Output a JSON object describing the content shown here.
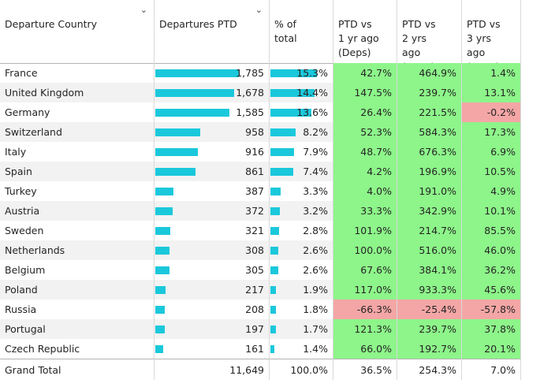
{
  "headers": {
    "country": "Departure Country",
    "departures": "Departures PTD",
    "pct": "% of\ntotal",
    "vs1": "PTD vs\n1 yr ago\n(Deps)",
    "vs2": "PTD vs\n2 yrs\nago\n(Deps)",
    "vs3": "PTD vs\n3 yrs\nago\n(Deps)"
  },
  "colors": {
    "positive": "#8df58a",
    "negative": "#f4a6a6",
    "bar": "#1ac8db"
  },
  "rows": [
    {
      "country": "France",
      "departures": "1,785",
      "dep_value": 1785,
      "pct": "15.3%",
      "pct_value": 15.3,
      "vs1": "42.7%",
      "vs2": "464.9%",
      "vs3": "1.4%",
      "vs1_neg": false,
      "vs2_neg": false,
      "vs3_neg": false
    },
    {
      "country": "United Kingdom",
      "departures": "1,678",
      "dep_value": 1678,
      "pct": "14.4%",
      "pct_value": 14.4,
      "vs1": "147.5%",
      "vs2": "239.7%",
      "vs3": "13.1%",
      "vs1_neg": false,
      "vs2_neg": false,
      "vs3_neg": false
    },
    {
      "country": "Germany",
      "departures": "1,585",
      "dep_value": 1585,
      "pct": "13.6%",
      "pct_value": 13.6,
      "vs1": "26.4%",
      "vs2": "221.5%",
      "vs3": "-0.2%",
      "vs1_neg": false,
      "vs2_neg": false,
      "vs3_neg": true
    },
    {
      "country": "Switzerland",
      "departures": "958",
      "dep_value": 958,
      "pct": "8.2%",
      "pct_value": 8.2,
      "vs1": "52.3%",
      "vs2": "584.3%",
      "vs3": "17.3%",
      "vs1_neg": false,
      "vs2_neg": false,
      "vs3_neg": false
    },
    {
      "country": "Italy",
      "departures": "916",
      "dep_value": 916,
      "pct": "7.9%",
      "pct_value": 7.9,
      "vs1": "48.7%",
      "vs2": "676.3%",
      "vs3": "6.9%",
      "vs1_neg": false,
      "vs2_neg": false,
      "vs3_neg": false
    },
    {
      "country": "Spain",
      "departures": "861",
      "dep_value": 861,
      "pct": "7.4%",
      "pct_value": 7.4,
      "vs1": "4.2%",
      "vs2": "196.9%",
      "vs3": "10.5%",
      "vs1_neg": false,
      "vs2_neg": false,
      "vs3_neg": false
    },
    {
      "country": "Turkey",
      "departures": "387",
      "dep_value": 387,
      "pct": "3.3%",
      "pct_value": 3.3,
      "vs1": "4.0%",
      "vs2": "191.0%",
      "vs3": "4.9%",
      "vs1_neg": false,
      "vs2_neg": false,
      "vs3_neg": false
    },
    {
      "country": "Austria",
      "departures": "372",
      "dep_value": 372,
      "pct": "3.2%",
      "pct_value": 3.2,
      "vs1": "33.3%",
      "vs2": "342.9%",
      "vs3": "10.1%",
      "vs1_neg": false,
      "vs2_neg": false,
      "vs3_neg": false
    },
    {
      "country": "Sweden",
      "departures": "321",
      "dep_value": 321,
      "pct": "2.8%",
      "pct_value": 2.8,
      "vs1": "101.9%",
      "vs2": "214.7%",
      "vs3": "85.5%",
      "vs1_neg": false,
      "vs2_neg": false,
      "vs3_neg": false
    },
    {
      "country": "Netherlands",
      "departures": "308",
      "dep_value": 308,
      "pct": "2.6%",
      "pct_value": 2.6,
      "vs1": "100.0%",
      "vs2": "516.0%",
      "vs3": "46.0%",
      "vs1_neg": false,
      "vs2_neg": false,
      "vs3_neg": false
    },
    {
      "country": "Belgium",
      "departures": "305",
      "dep_value": 305,
      "pct": "2.6%",
      "pct_value": 2.6,
      "vs1": "67.6%",
      "vs2": "384.1%",
      "vs3": "36.2%",
      "vs1_neg": false,
      "vs2_neg": false,
      "vs3_neg": false
    },
    {
      "country": "Poland",
      "departures": "217",
      "dep_value": 217,
      "pct": "1.9%",
      "pct_value": 1.9,
      "vs1": "117.0%",
      "vs2": "933.3%",
      "vs3": "45.6%",
      "vs1_neg": false,
      "vs2_neg": false,
      "vs3_neg": false
    },
    {
      "country": "Russia",
      "departures": "208",
      "dep_value": 208,
      "pct": "1.8%",
      "pct_value": 1.8,
      "vs1": "-66.3%",
      "vs2": "-25.4%",
      "vs3": "-57.8%",
      "vs1_neg": true,
      "vs2_neg": true,
      "vs3_neg": true
    },
    {
      "country": "Portugal",
      "departures": "197",
      "dep_value": 197,
      "pct": "1.7%",
      "pct_value": 1.7,
      "vs1": "121.3%",
      "vs2": "239.7%",
      "vs3": "37.8%",
      "vs1_neg": false,
      "vs2_neg": false,
      "vs3_neg": false
    },
    {
      "country": "Czech Republic",
      "departures": "161",
      "dep_value": 161,
      "pct": "1.4%",
      "pct_value": 1.4,
      "vs1": "66.0%",
      "vs2": "192.7%",
      "vs3": "20.1%",
      "vs1_neg": false,
      "vs2_neg": false,
      "vs3_neg": false
    }
  ],
  "total": {
    "label": "Grand Total",
    "departures": "11,649",
    "pct": "100.0%",
    "vs1": "36.5%",
    "vs2": "254.3%",
    "vs3": "7.0%"
  }
}
